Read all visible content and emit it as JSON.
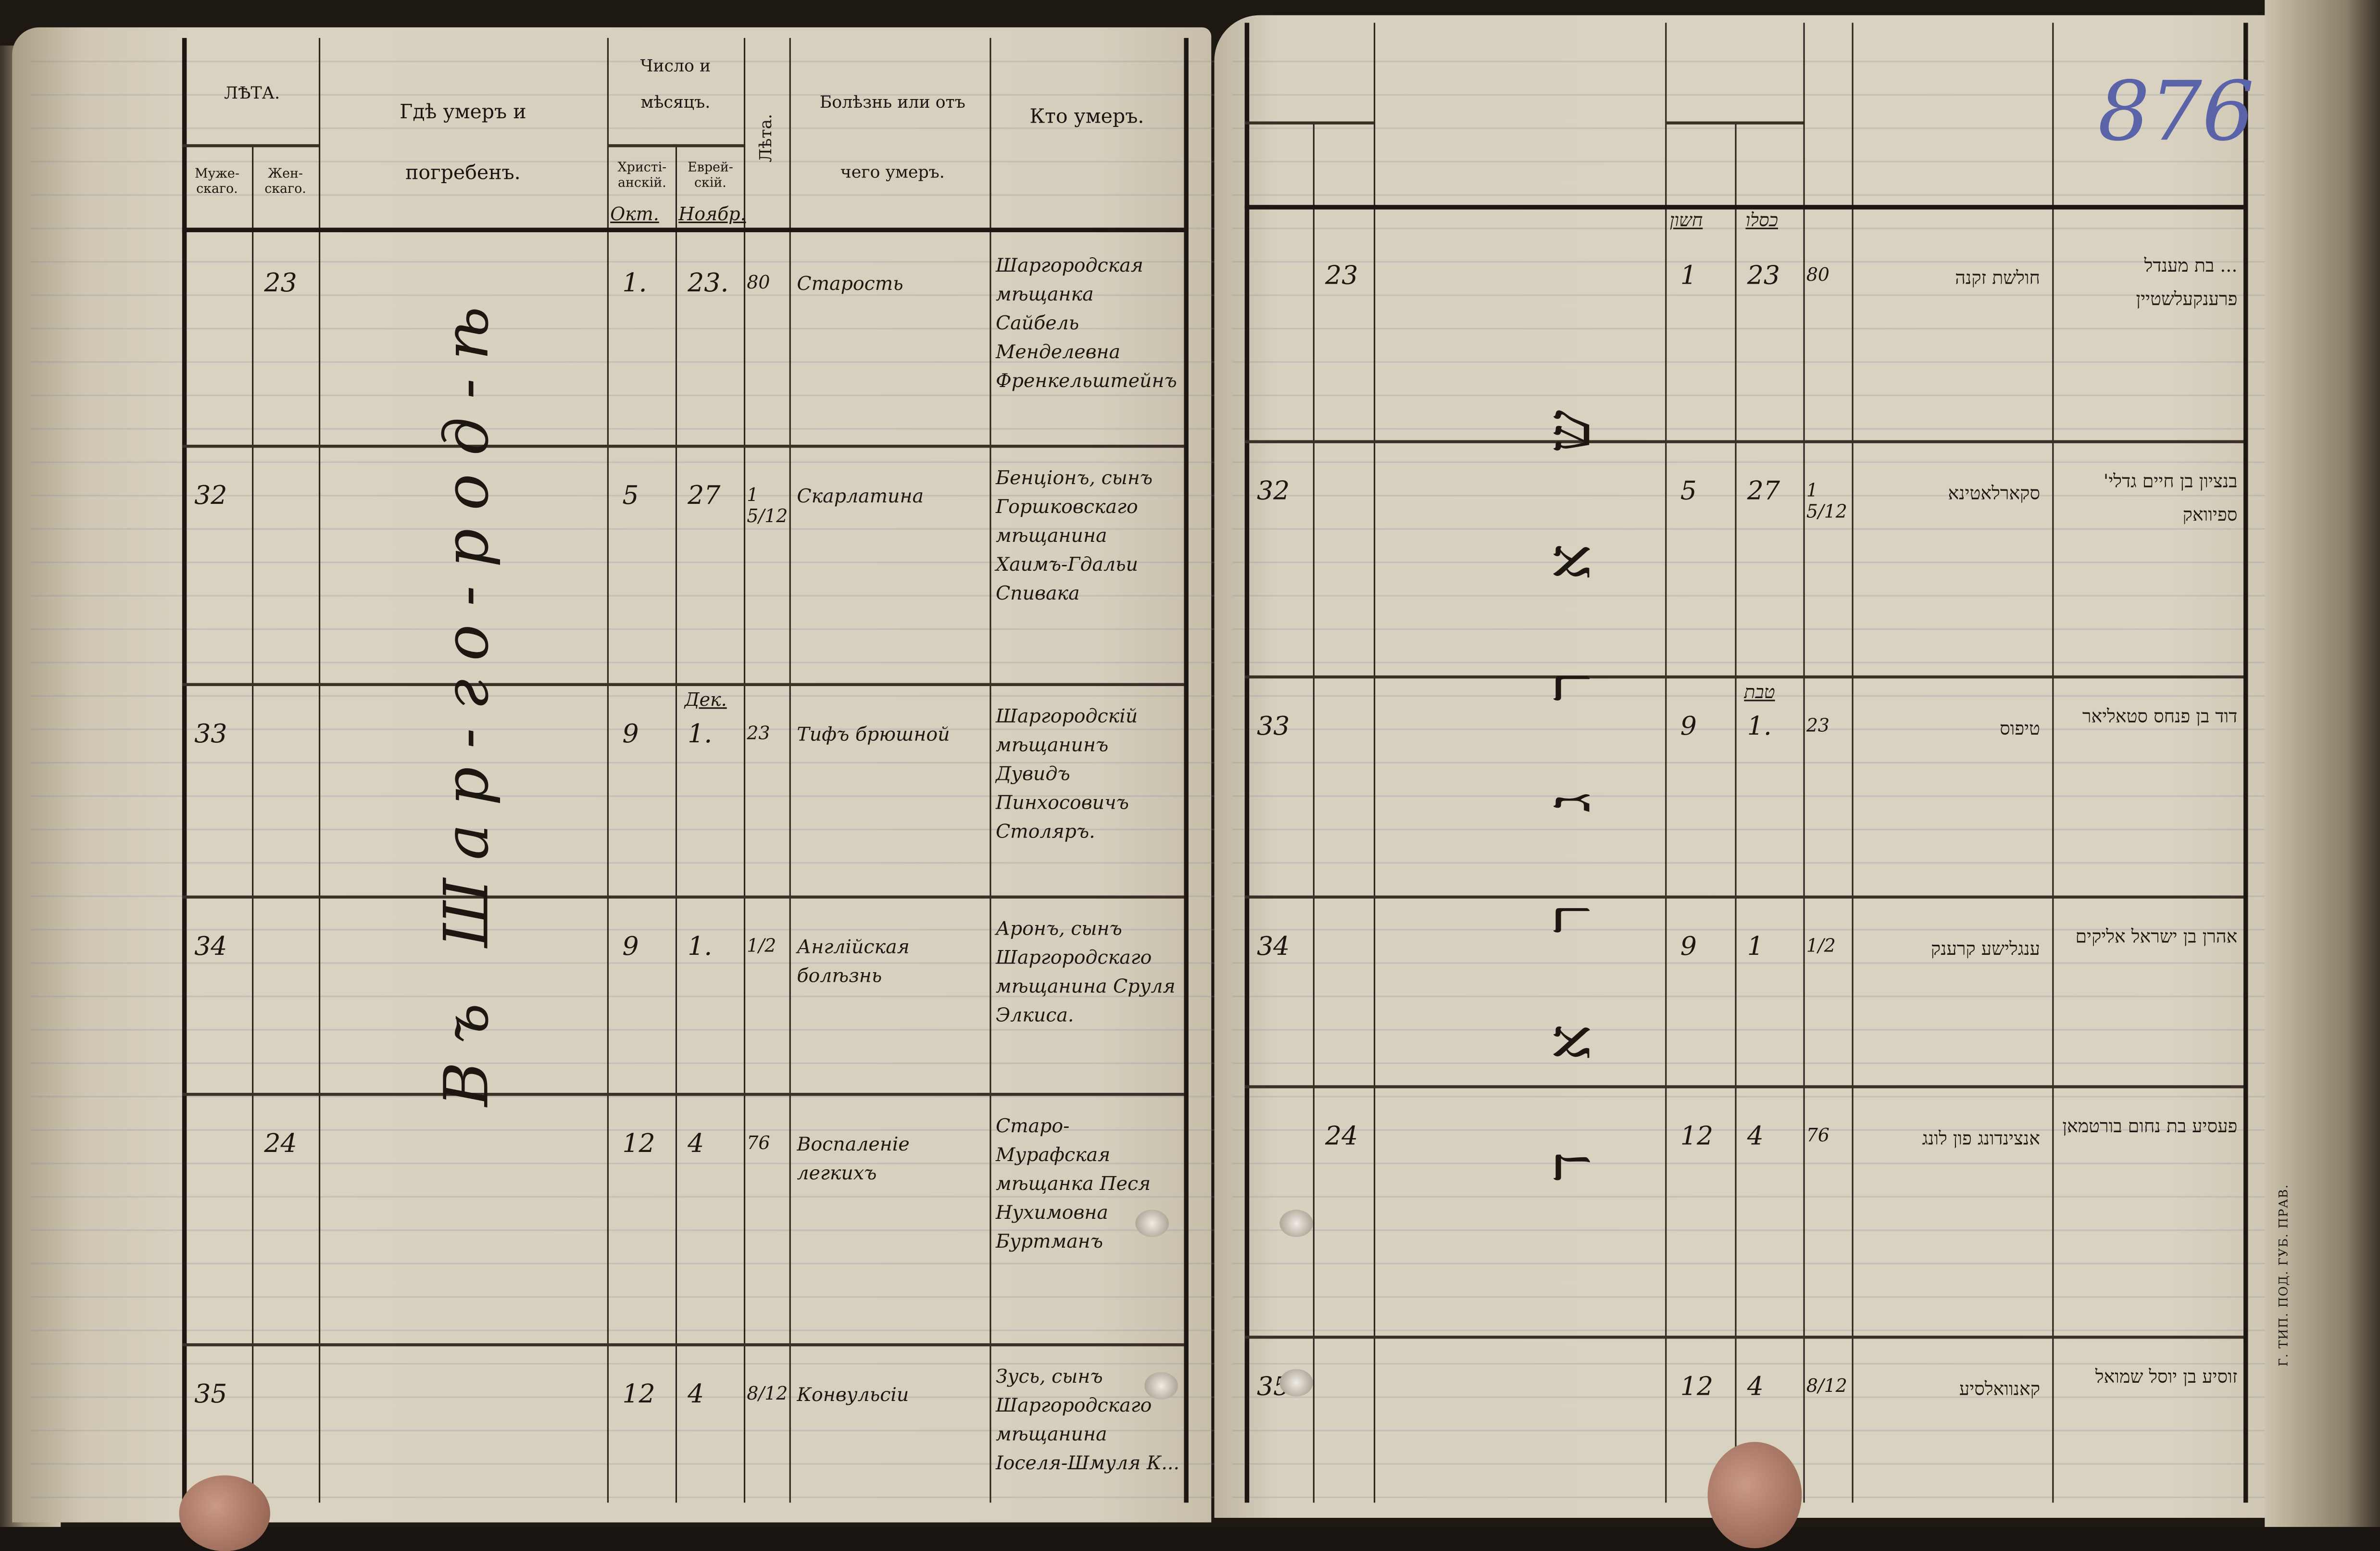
{
  "left_page": {
    "headers": {
      "age": "ЛѢТА.",
      "age_male": "Муже-скаго.",
      "age_female": "Жен-скаго.",
      "place": "Гдѣ умеръ и погребенъ.",
      "date": "Число и мѣсяцъ.",
      "date_christian": "Христі-анскій.",
      "date_jewish": "Еврей-скій.",
      "years": "Лѣта.",
      "cause": "Болѣзнь или отъ чего умеръ.",
      "who": "Кто умеръ."
    },
    "month_labels": {
      "christian": "Окт.",
      "jewish": "Ноябр."
    },
    "place_vertical": "Въ Шар-го-род-ѣ",
    "rows": [
      {
        "male": "",
        "female": "23",
        "christian_day": "1.",
        "jewish_day": "23.",
        "jewish_month": "",
        "age": "80",
        "cause": "Старость",
        "who": "Шаргородская мѣщанка Сайбель Менделевна Френкельштейнъ"
      },
      {
        "male": "32",
        "female": "",
        "christian_day": "5",
        "jewish_day": "27",
        "jewish_month": "",
        "age": "1 5/12",
        "cause": "Скарлатина",
        "who": "Бенціонъ, сынъ Горшковскаго мѣщанина Хаимъ-Гдальи Спивака"
      },
      {
        "male": "33",
        "female": "",
        "christian_day": "9",
        "jewish_day": "1.",
        "jewish_month": "Дек.",
        "age": "23",
        "cause": "Тифъ брюшной",
        "who": "Шаргородскій мѣщанинъ Дувидъ Пинхосовичъ Столяръ."
      },
      {
        "male": "34",
        "female": "",
        "christian_day": "9",
        "jewish_day": "1.",
        "jewish_month": "",
        "age": "1/2",
        "cause": "Англійская болѣзнь",
        "who": "Аронъ, сынъ Шаргородскаго мѣщанина Сруля Элкиса."
      },
      {
        "male": "",
        "female": "24",
        "christian_day": "12",
        "jewish_day": "4",
        "jewish_month": "",
        "age": "76",
        "cause": "Воспаленіе легкихъ",
        "who": "Старо-Мурафская мѣщанка Песя Нухимовна Буртманъ"
      },
      {
        "male": "35",
        "female": "",
        "christian_day": "12",
        "jewish_day": "4",
        "jewish_month": "",
        "age": "8/12",
        "cause": "Конвульсіи",
        "who": "Зусь, сынъ Шаргородскаго мѣщанина Іоселя-Шмуля К..."
      }
    ]
  },
  "right_page": {
    "page_number": "876",
    "month_labels": {
      "christian": "חשון",
      "jewish": "כסלו"
    },
    "place_vertical": "שארגראד",
    "imprint": "Г.   ТИП. ПОД. ГУБ. ПРАВ.",
    "rows": [
      {
        "male": "",
        "female": "23",
        "christian_day": "1",
        "jewish_day": "23",
        "jewish_month": "",
        "age": "80",
        "cause": "חולשת זקנה",
        "who": "... בת מענדל פרענקעלשטיין"
      },
      {
        "male": "32",
        "female": "",
        "christian_day": "5",
        "jewish_day": "27",
        "jewish_month": "",
        "age": "1 5/12",
        "cause": "סקארלאטינא",
        "who": "בנציון בן חיים גדלי' ספיוואק"
      },
      {
        "male": "33",
        "female": "",
        "christian_day": "9",
        "jewish_day": "1.",
        "jewish_month": "טבת",
        "age": "23",
        "cause": "טיפוס",
        "who": "דוד בן פנחס סטאליאר"
      },
      {
        "male": "34",
        "female": "",
        "christian_day": "9",
        "jewish_day": "1",
        "jewish_month": "",
        "age": "1/2",
        "cause": "ענגלישע קרענק",
        "who": "אהרן בן ישראל אליקים"
      },
      {
        "male": "",
        "female": "24",
        "christian_day": "12",
        "jewish_day": "4",
        "jewish_month": "",
        "age": "76",
        "cause": "אנצינדונג פון לונג",
        "who": "פעסיע בת נחום בורטמאן"
      },
      {
        "male": "35",
        "female": "",
        "christian_day": "12",
        "jewish_day": "4",
        "jewish_month": "",
        "age": "8/12",
        "cause": "קאנוואלסיע",
        "who": "זוסיע בן יוסל שמואל"
      }
    ]
  },
  "colors": {
    "paper": "#d8d1bf",
    "ink": "#1d1711",
    "pencil": "#5a62a8",
    "background": "#1e1812"
  }
}
